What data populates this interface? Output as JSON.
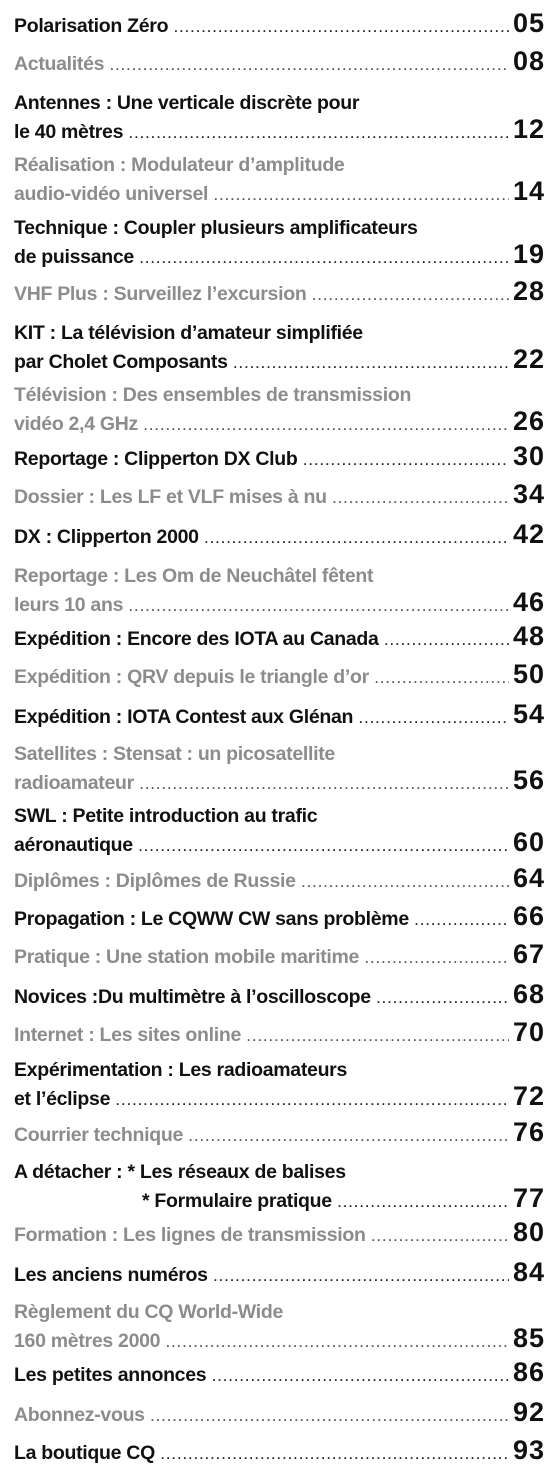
{
  "entries": [
    {
      "lines": [
        "Polarisation Zéro"
      ],
      "page": "05",
      "shade": "dark"
    },
    {
      "lines": [
        "Actualités"
      ],
      "page": "08",
      "shade": "grey"
    },
    {
      "lines": [
        "Antennes : Une verticale discrète pour",
        "le 40 mètres"
      ],
      "page": "12",
      "shade": "dark"
    },
    {
      "lines": [
        "Réalisation : Modulateur d’amplitude",
        "audio-vidéo universel"
      ],
      "page": "14",
      "shade": "grey"
    },
    {
      "lines": [
        "Technique : Coupler plusieurs amplificateurs",
        "de puissance"
      ],
      "page": "19",
      "shade": "dark"
    },
    {
      "lines": [
        "VHF Plus : Surveillez l’excursion"
      ],
      "page": "28",
      "shade": "grey"
    },
    {
      "lines": [
        "KIT : La télévision d’amateur simplifiée",
        "par Cholet Composants"
      ],
      "page": "22",
      "shade": "dark"
    },
    {
      "lines": [
        "Télévision : Des ensembles de transmission",
        "vidéo 2,4 GHz"
      ],
      "page": "26",
      "shade": "grey"
    },
    {
      "lines": [
        "Reportage : Clipperton DX Club"
      ],
      "page": "30",
      "shade": "dark"
    },
    {
      "lines": [
        "Dossier : Les LF et VLF mises à nu"
      ],
      "page": "34",
      "shade": "grey"
    },
    {
      "lines": [
        "DX : Clipperton 2000"
      ],
      "page": "42",
      "shade": "dark"
    },
    {
      "lines": [
        "Reportage : Les Om de Neuchâtel fêtent",
        "leurs 10 ans"
      ],
      "page": "46",
      "shade": "grey"
    },
    {
      "lines": [
        "Expédition : Encore des IOTA au Canada"
      ],
      "page": "48",
      "shade": "dark"
    },
    {
      "lines": [
        "Expédition : QRV depuis le triangle d’or"
      ],
      "page": "50",
      "shade": "grey"
    },
    {
      "lines": [
        "Expédition : IOTA Contest aux Glénan"
      ],
      "page": "54",
      "shade": "dark"
    },
    {
      "lines": [
        "Satellites : Stensat : un picosatellite",
        "radioamateur"
      ],
      "page": "56",
      "shade": "grey"
    },
    {
      "lines": [
        "SWL : Petite introduction au trafic",
        "aéronautique"
      ],
      "page": "60",
      "shade": "dark"
    },
    {
      "lines": [
        "Diplômes : Diplômes de Russie"
      ],
      "page": "64",
      "shade": "grey"
    },
    {
      "lines": [
        "Propagation : Le CQWW CW sans problème"
      ],
      "page": "66",
      "shade": "dark"
    },
    {
      "lines": [
        "Pratique : Une station mobile maritime"
      ],
      "page": "67",
      "shade": "grey"
    },
    {
      "lines": [
        "Novices :Du multimètre à l’oscilloscope"
      ],
      "page": "68",
      "shade": "dark"
    },
    {
      "lines": [
        "Internet : Les sites online"
      ],
      "page": "70",
      "shade": "grey"
    },
    {
      "lines": [
        "Expérimentation : Les radioamateurs",
        "et l’éclipse"
      ],
      "page": "72",
      "shade": "dark"
    },
    {
      "lines": [
        "Courrier technique"
      ],
      "page": "76",
      "shade": "grey"
    },
    {
      "lines": [
        "A détacher : * Les réseaux de balises",
        "* Formulaire pratique"
      ],
      "page": "77",
      "shade": "dark",
      "indent_second": true
    },
    {
      "lines": [
        "Formation : Les lignes de transmission"
      ],
      "page": "80",
      "shade": "grey"
    },
    {
      "lines": [
        "Les anciens numéros"
      ],
      "page": "84",
      "shade": "dark"
    },
    {
      "lines": [
        "Règlement du CQ World-Wide",
        "160 mètres 2000"
      ],
      "page": "85",
      "shade": "grey"
    },
    {
      "lines": [
        "Les petites annonces"
      ],
      "page": "86",
      "shade": "dark"
    },
    {
      "lines": [
        "Abonnez-vous"
      ],
      "page": "92",
      "shade": "grey"
    },
    {
      "lines": [
        "La boutique CQ"
      ],
      "page": "93",
      "shade": "dark"
    }
  ]
}
